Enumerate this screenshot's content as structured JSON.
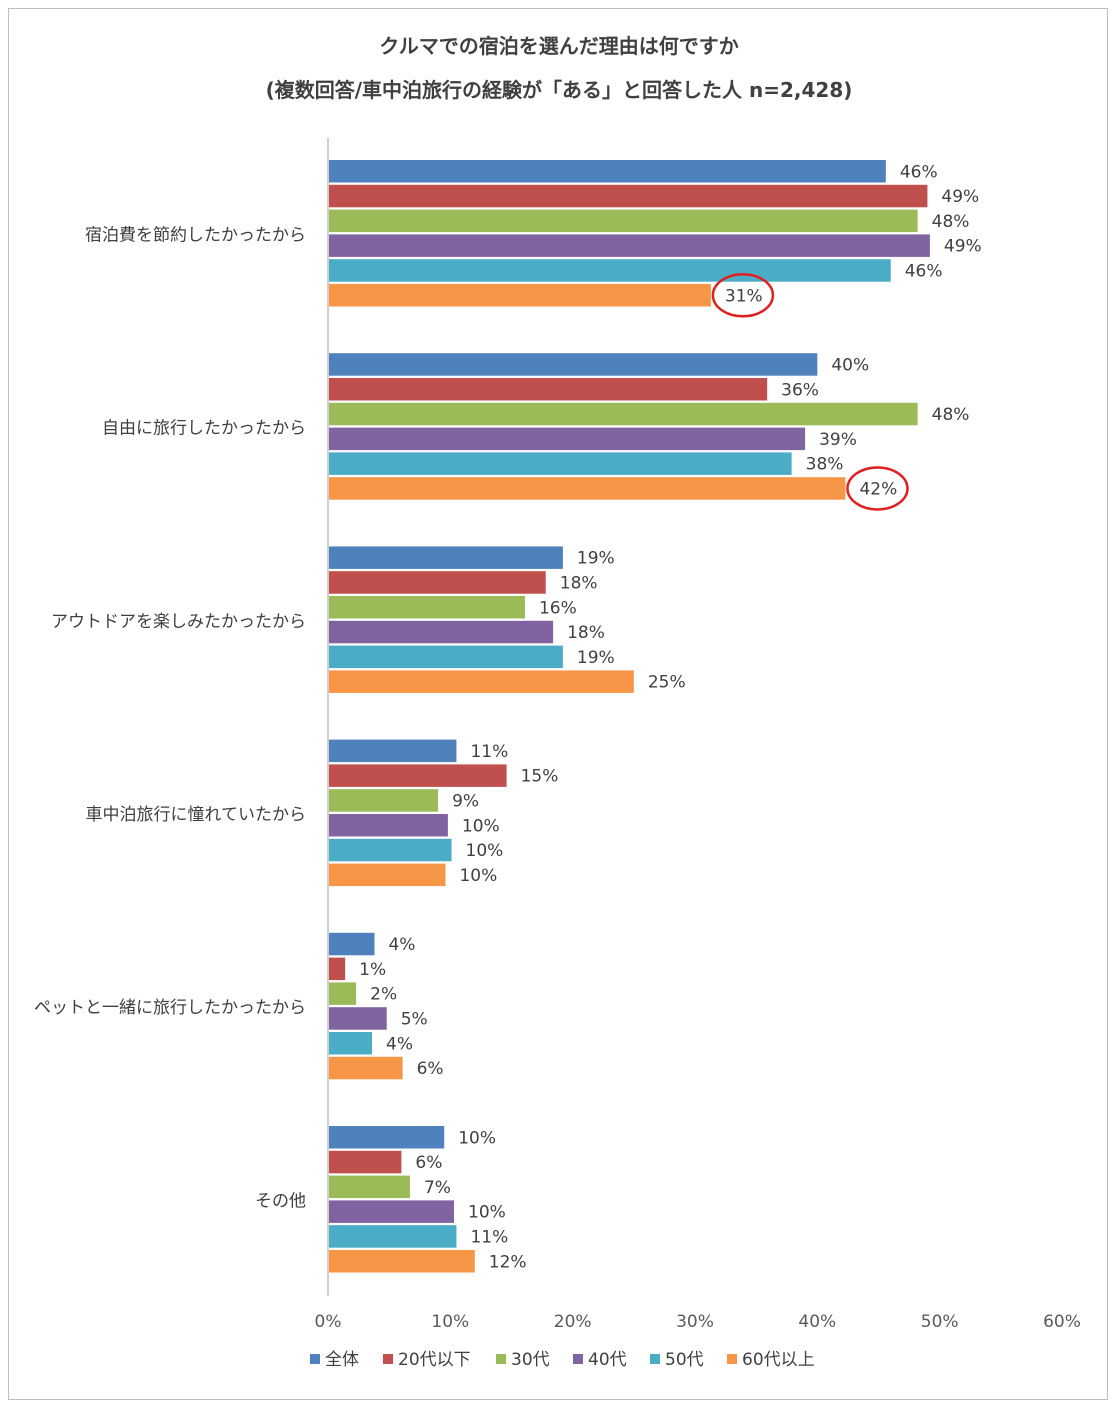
{
  "chart_data": {
    "type": "bar",
    "orientation": "horizontal",
    "title": "クルマでの宿泊を選んだ理由は何ですか",
    "subtitle": "(複数回答/車中泊旅行の経験が「ある」と回答した人 n=2,428)",
    "categories": [
      "宿泊費を節約したかったから",
      "自由に旅行したかったから",
      "アウトドアを楽しみたかったから",
      "車中泊旅行に憧れていたから",
      "ペットと一緒に旅行したかったから",
      "その他"
    ],
    "series": [
      {
        "name": "全体",
        "color": "#4f81bd",
        "values": [
          46,
          40,
          19,
          11,
          4,
          10
        ]
      },
      {
        "name": "20代以下",
        "color": "#c0504d",
        "values": [
          49,
          36,
          18,
          15,
          1,
          6
        ]
      },
      {
        "name": "30代",
        "color": "#9bbb59",
        "values": [
          48,
          48,
          16,
          9,
          2,
          7
        ]
      },
      {
        "name": "40代",
        "color": "#8064a2",
        "values": [
          49,
          39,
          18,
          10,
          5,
          10
        ]
      },
      {
        "name": "50代",
        "color": "#4bacc6",
        "values": [
          46,
          38,
          19,
          10,
          4,
          11
        ]
      },
      {
        "name": "60代以上",
        "color": "#f79646",
        "values": [
          31,
          42,
          25,
          10,
          6,
          12
        ]
      }
    ],
    "xlim": [
      0,
      60
    ],
    "xticks": [
      "0%",
      "10%",
      "20%",
      "30%",
      "40%",
      "50%",
      "60%"
    ],
    "value_suffix": "%",
    "legend_position": "bottom",
    "grid": false,
    "highlight": [
      {
        "category_index": 0,
        "series_index": 5,
        "style": "red-circle"
      },
      {
        "category_index": 1,
        "series_index": 5,
        "style": "red-circle"
      }
    ],
    "exact_values": {
      "0": [
        45.6,
        49.0,
        48.2,
        49.2,
        46.0,
        31.3
      ],
      "1": [
        40.0,
        35.9,
        48.2,
        39.0,
        37.9,
        42.3
      ],
      "2": [
        19.2,
        17.8,
        16.1,
        18.4,
        19.2,
        25.0
      ],
      "3": [
        10.5,
        14.6,
        9.0,
        9.8,
        10.1,
        9.6
      ],
      "4": [
        3.8,
        1.4,
        2.3,
        4.8,
        3.6,
        6.1
      ],
      "5": [
        9.5,
        6.0,
        6.7,
        10.3,
        10.5,
        12.0
      ]
    }
  }
}
